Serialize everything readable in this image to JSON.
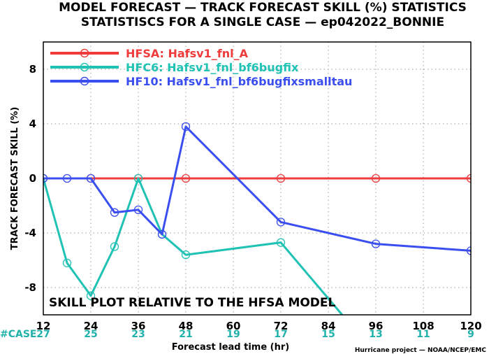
{
  "chart_data": {
    "type": "line",
    "title": "MODEL FORECAST — TRACK FORECAST SKILL (%) STATISTICS",
    "subtitle": "STATISTISCS FOR A SINGLE CASE — ep042022_BONNIE",
    "xlabel": "Forecast lead time (hr)",
    "ylabel": "TRACK FORECAST SKILL (%)",
    "xlim": [
      12,
      120
    ],
    "ylim": [
      -10,
      10
    ],
    "x_ticks": [
      12,
      24,
      36,
      48,
      60,
      72,
      84,
      96,
      108,
      120
    ],
    "y_ticks": [
      8,
      4,
      0,
      -4,
      -8
    ],
    "grid": true,
    "legend_position": "top-left",
    "annotation": "SKILL PLOT RELATIVE TO THE HFSA MODEL",
    "case_label": "#CASE",
    "case_counts": [
      "27",
      "25",
      "23",
      "21",
      "19",
      "17",
      "15",
      "13",
      "11",
      "9"
    ],
    "case_color": "#20b2aa",
    "credit": "Hurricane project — NOAA/NCEP/EMC",
    "series": [
      {
        "name": "HFSA:  Hafsv1_fnl_A",
        "color": "#ef3b3b",
        "x": [
          12,
          24,
          36,
          48,
          72,
          96,
          120
        ],
        "y": [
          0,
          0,
          0,
          0,
          0,
          0,
          0
        ],
        "markers": [
          12,
          24,
          36,
          48,
          72,
          96,
          120
        ]
      },
      {
        "name": "HFC6:  Hafsv1_fnl_bf6bugfix",
        "color": "#20c2b4",
        "x": [
          12,
          18,
          24,
          30,
          36,
          42,
          48,
          72,
          87.5
        ],
        "y": [
          0,
          -6.2,
          -8.6,
          -5.0,
          0,
          -4.1,
          -5.6,
          -4.7,
          -10
        ],
        "markers": [
          12,
          18,
          24,
          30,
          36,
          42,
          48,
          72
        ]
      },
      {
        "name": "HF10:  Hafsv1_fnl_bf6bugfixsmalltau",
        "color": "#3b4ef0",
        "x": [
          12,
          18,
          24,
          30,
          36,
          42,
          48,
          72,
          96,
          120
        ],
        "y": [
          0,
          0,
          0,
          -2.5,
          -2.3,
          -4.1,
          3.8,
          -3.2,
          -4.8,
          -5.3
        ],
        "markers": [
          12,
          18,
          24,
          30,
          36,
          42,
          48,
          72,
          96,
          120
        ]
      }
    ]
  }
}
